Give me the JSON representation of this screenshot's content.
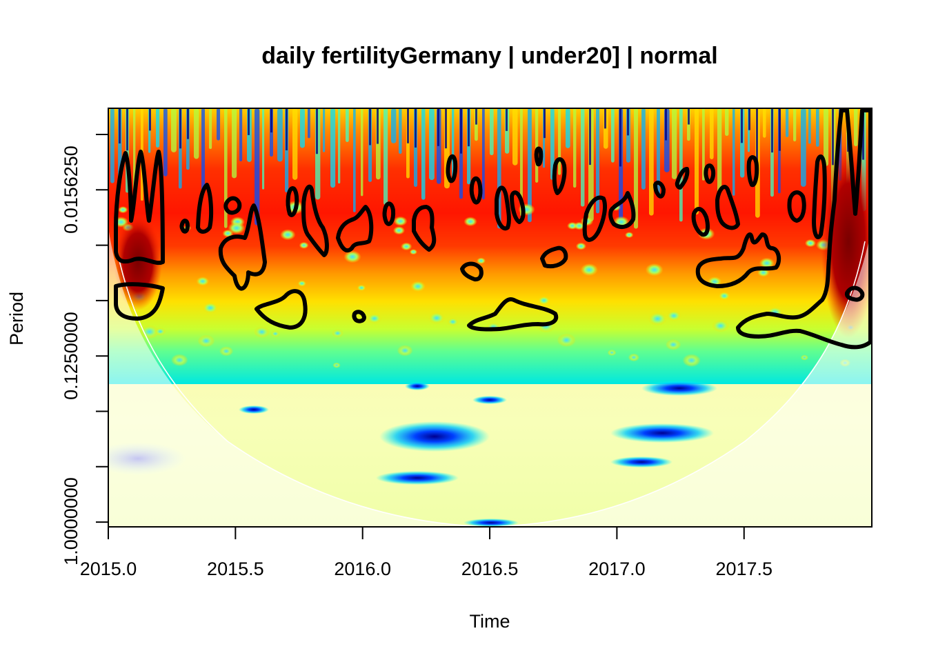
{
  "chart_data": {
    "type": "heatmap",
    "subtype": "wavelet power spectrum",
    "title": "daily fertilityGermany | under20] | normal",
    "xlabel": "Time",
    "ylabel": "Period",
    "x_ticks": [
      "2015.0",
      "2015.5",
      "2016.0",
      "2016.5",
      "2017.0",
      "2017.5"
    ],
    "x_tick_values": [
      2015.0,
      2015.5,
      2016.0,
      2016.5,
      2017.0,
      2017.5
    ],
    "xlim": [
      2015.0,
      2018.0
    ],
    "y_ticks": [
      "0.0156250",
      "0.1250000",
      "1.0000000"
    ],
    "y_tick_values": [
      0.015625,
      0.125,
      1.0
    ],
    "y_scale": "log2",
    "y_tick_count": 8,
    "colormap": "jet",
    "significance_contours": true,
    "cone_of_influence": true
  },
  "colors": {
    "contour": "#000000",
    "coi_line": "#ffffff",
    "frame": "#000000",
    "background": "#ffffff"
  }
}
